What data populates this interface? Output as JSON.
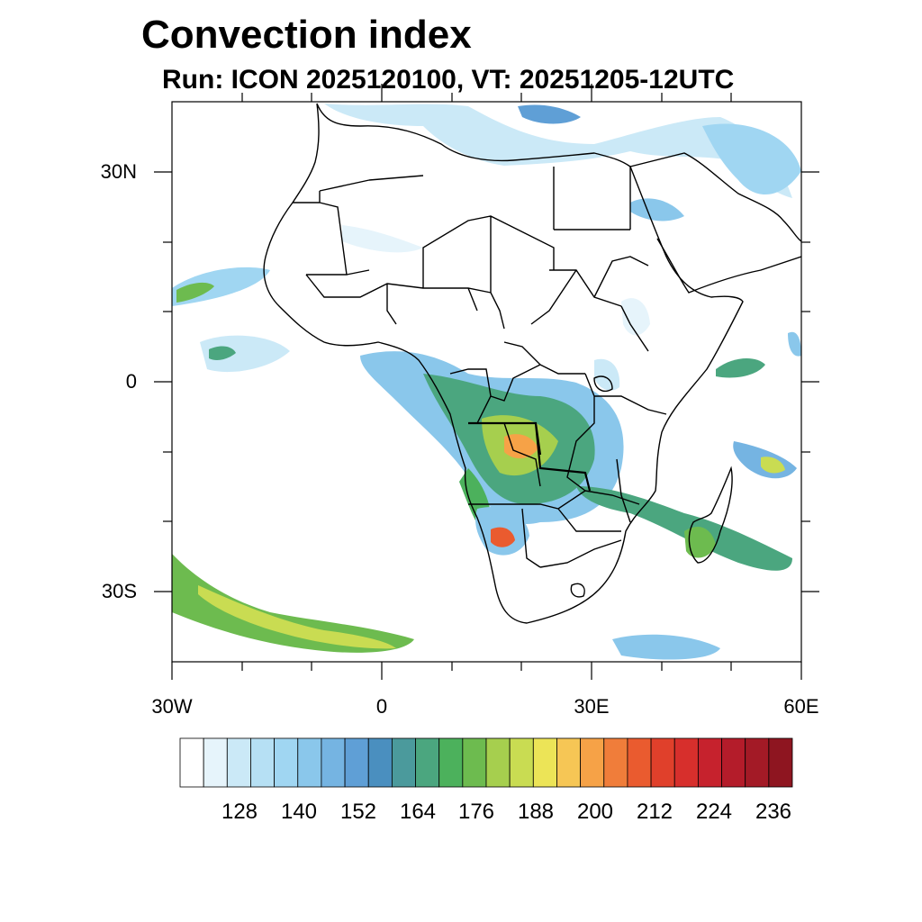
{
  "figure": {
    "title": "Convection index",
    "subtitle": "Run: ICON 2025120100,  VT: 20251205-12UTC"
  },
  "map": {
    "region": "Africa",
    "lon_range": [
      -30,
      60
    ],
    "lat_range": [
      -40,
      40
    ],
    "lat_labels": [
      {
        "value": 30,
        "text": "30N"
      },
      {
        "value": 0,
        "text": "0"
      },
      {
        "value": -30,
        "text": "30S"
      }
    ],
    "lon_labels": [
      {
        "value": -30,
        "text": "30W"
      },
      {
        "value": 0,
        "text": "0"
      },
      {
        "value": 30,
        "text": "30E"
      },
      {
        "value": 60,
        "text": "60E"
      }
    ]
  },
  "colorbar": {
    "colors": [
      "#ffffff",
      "#e6f4fb",
      "#cbe9f7",
      "#b6e0f4",
      "#a0d6f2",
      "#8ac7eb",
      "#75b4e2",
      "#5f9fd6",
      "#4a8fbf",
      "#4b9a9c",
      "#4ba67f",
      "#4cb15c",
      "#6dbb4f",
      "#a6cf4e",
      "#c9dc52",
      "#ece457",
      "#f6c655",
      "#f6a247",
      "#f07d3a",
      "#ea5b2f",
      "#e0402b",
      "#d72f2c",
      "#c6222d",
      "#b41c2a",
      "#a31a26",
      "#8e1520"
    ],
    "labels": [
      "128",
      "140",
      "152",
      "164",
      "176",
      "188",
      "200",
      "212",
      "224",
      "236"
    ]
  }
}
